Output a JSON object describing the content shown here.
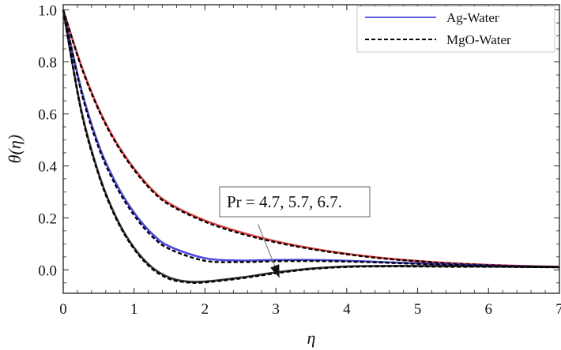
{
  "chart_data": {
    "type": "line",
    "xlabel": "η",
    "ylabel": "θ(η)",
    "xlim": [
      0,
      7
    ],
    "ylim": [
      -0.09,
      1.02
    ],
    "x_ticks": [
      "0",
      "1",
      "2",
      "3",
      "4",
      "5",
      "6",
      "7"
    ],
    "y_ticks": [
      "0.0",
      "0.2",
      "0.4",
      "0.6",
      "0.8",
      "1.0"
    ],
    "legend": {
      "placement": "top-right",
      "entries": [
        {
          "label": "Ag-Water",
          "style": "solid",
          "color": "#2a2ad8"
        },
        {
          "label": "MgO-Water",
          "style": "dashed",
          "color": "#000000"
        }
      ]
    },
    "annotation": {
      "text": "Pr = 4.7, 5.7, 6.7.",
      "arrow_from": [
        2.75,
        0.175
      ],
      "arrow_to": [
        3.05,
        -0.03
      ]
    },
    "series": [
      {
        "color": "#e02020",
        "x": [
          0,
          0.25,
          0.5,
          0.75,
          1.0,
          1.25,
          1.5,
          2.0,
          2.5,
          3.0,
          3.5,
          4.0,
          4.5,
          5.0,
          5.5,
          6.0,
          6.5,
          7.0
        ],
        "ag_water": [
          1.0,
          0.79,
          0.62,
          0.49,
          0.39,
          0.31,
          0.255,
          0.19,
          0.145,
          0.11,
          0.083,
          0.062,
          0.046,
          0.034,
          0.025,
          0.019,
          0.015,
          0.012
        ],
        "mgo_water": [
          1.0,
          0.785,
          0.615,
          0.485,
          0.385,
          0.305,
          0.25,
          0.185,
          0.14,
          0.106,
          0.08,
          0.06,
          0.044,
          0.033,
          0.024,
          0.018,
          0.014,
          0.011
        ]
      },
      {
        "color": "#2a2ad8",
        "x": [
          0,
          0.25,
          0.5,
          0.75,
          1.0,
          1.25,
          1.5,
          2.0,
          2.5,
          3.0,
          3.5,
          4.0,
          4.5,
          5.0,
          5.5,
          6.0,
          6.5,
          7.0
        ],
        "ag_water": [
          1.0,
          0.7,
          0.48,
          0.33,
          0.22,
          0.14,
          0.09,
          0.045,
          0.036,
          0.038,
          0.038,
          0.035,
          0.03,
          0.025,
          0.02,
          0.016,
          0.013,
          0.011
        ],
        "mgo_water": [
          1.0,
          0.69,
          0.47,
          0.32,
          0.21,
          0.13,
          0.08,
          0.035,
          0.03,
          0.033,
          0.034,
          0.032,
          0.028,
          0.023,
          0.019,
          0.015,
          0.012,
          0.01
        ]
      },
      {
        "color": "#111111",
        "x": [
          0,
          0.25,
          0.5,
          0.75,
          1.0,
          1.25,
          1.5,
          1.75,
          2.0,
          2.5,
          3.0,
          3.5,
          4.0,
          4.5,
          5.0,
          5.5,
          6.0,
          6.5,
          7.0
        ],
        "ag_water": [
          1.0,
          0.62,
          0.37,
          0.2,
          0.085,
          0.01,
          -0.03,
          -0.045,
          -0.045,
          -0.03,
          -0.01,
          0.005,
          0.013,
          0.015,
          0.015,
          0.014,
          0.013,
          0.012,
          0.011
        ],
        "mgo_water": [
          1.0,
          0.615,
          0.365,
          0.195,
          0.08,
          0.005,
          -0.035,
          -0.048,
          -0.048,
          -0.033,
          -0.013,
          0.003,
          0.011,
          0.013,
          0.013,
          0.012,
          0.012,
          0.011,
          0.01
        ]
      }
    ]
  }
}
